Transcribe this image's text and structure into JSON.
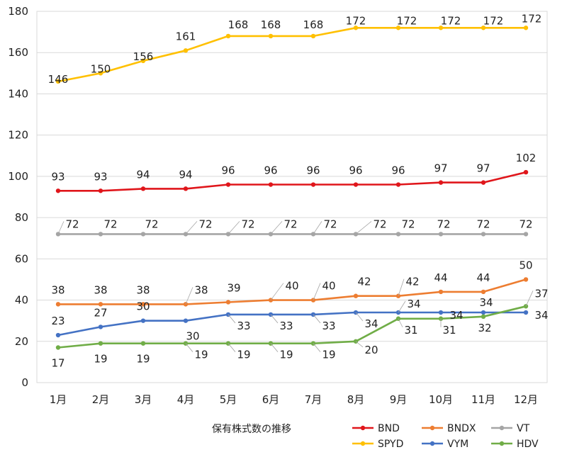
{
  "chart_data": {
    "type": "line",
    "title": "",
    "xlabel": "保有株式数の推移",
    "ylabel": "",
    "ylim": [
      0,
      180
    ],
    "yticks": [
      0,
      20,
      40,
      60,
      80,
      100,
      120,
      140,
      160,
      180
    ],
    "grid": true,
    "legend_position": "bottom-right",
    "categories": [
      "1月",
      "2月",
      "3月",
      "4月",
      "5月",
      "6月",
      "7月",
      "8月",
      "9月",
      "10月",
      "11月",
      "12月"
    ],
    "series": [
      {
        "name": "BND",
        "color": "#e0161b",
        "values": [
          93,
          93,
          94,
          94,
          96,
          96,
          96,
          96,
          96,
          97,
          97,
          102
        ]
      },
      {
        "name": "BNDX",
        "color": "#ed7d31",
        "values": [
          38,
          38,
          38,
          38,
          39,
          40,
          40,
          42,
          42,
          44,
          44,
          50
        ]
      },
      {
        "name": "VT",
        "color": "#a5a5a5",
        "values": [
          72,
          72,
          72,
          72,
          72,
          72,
          72,
          72,
          72,
          72,
          72,
          72
        ]
      },
      {
        "name": "SPYD",
        "color": "#ffc000",
        "values": [
          146,
          150,
          156,
          161,
          168,
          168,
          168,
          172,
          172,
          172,
          172,
          172
        ]
      },
      {
        "name": "VYM",
        "color": "#4472c4",
        "values": [
          23,
          27,
          30,
          30,
          33,
          33,
          33,
          34,
          34,
          34,
          34,
          34
        ]
      },
      {
        "name": "HDV",
        "color": "#70ad47",
        "values": [
          17,
          19,
          19,
          19,
          19,
          19,
          19,
          20,
          31,
          31,
          32,
          37
        ]
      }
    ]
  }
}
